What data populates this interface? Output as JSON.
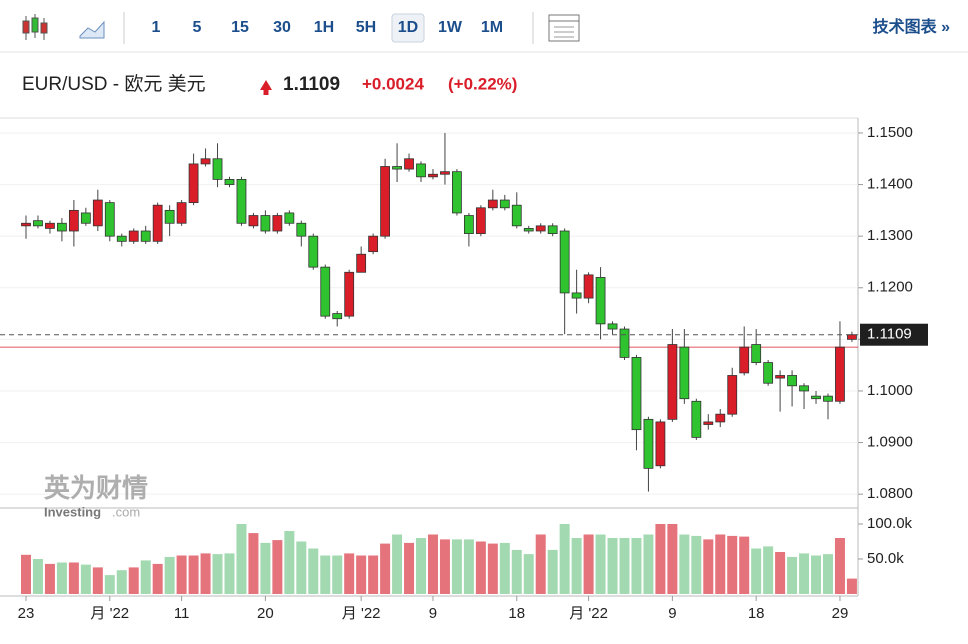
{
  "toolbar": {
    "buttons": [
      "1",
      "5",
      "15",
      "30",
      "1H",
      "5H",
      "1D",
      "1W",
      "1M"
    ],
    "selected": "1D",
    "link": "技术图表 »"
  },
  "quote": {
    "name": "EUR/USD - 欧元 美元",
    "last": 1.1109,
    "change": "+0.0024",
    "change_pct": "(+0.22%)"
  },
  "watermark": {
    "cn": "英为财情",
    "en": "Investing",
    "suffix": ".com"
  },
  "chart_data": {
    "type": "candlestick",
    "open": [
      1.132,
      1.133,
      1.1315,
      1.1325,
      1.131,
      1.1345,
      1.132,
      1.1365,
      1.13,
      1.129,
      1.131,
      1.129,
      1.135,
      1.1325,
      1.1365,
      1.144,
      1.145,
      1.141,
      1.141,
      1.132,
      1.134,
      1.131,
      1.1345,
      1.1325,
      1.13,
      1.124,
      1.115,
      1.1145,
      1.123,
      1.127,
      1.13,
      1.1435,
      1.143,
      1.144,
      1.1415,
      1.142,
      1.1425,
      1.134,
      1.1305,
      1.1355,
      1.137,
      1.136,
      1.1315,
      1.131,
      1.132,
      1.131,
      1.119,
      1.118,
      1.122,
      1.113,
      1.112,
      1.1065,
      1.0945,
      1.0855,
      1.0945,
      1.1085,
      1.098,
      1.0935,
      1.094,
      1.0955,
      1.1035,
      1.109,
      1.1055,
      1.1025,
      1.103,
      1.101,
      1.099,
      1.099,
      1.098,
      1.11
    ],
    "high": [
      1.134,
      1.134,
      1.133,
      1.1335,
      1.137,
      1.1355,
      1.139,
      1.137,
      1.1305,
      1.1315,
      1.132,
      1.1365,
      1.136,
      1.137,
      1.146,
      1.147,
      1.148,
      1.1415,
      1.1415,
      1.1345,
      1.135,
      1.1345,
      1.135,
      1.133,
      1.1305,
      1.1245,
      1.1155,
      1.1235,
      1.128,
      1.1305,
      1.145,
      1.148,
      1.146,
      1.1445,
      1.143,
      1.15,
      1.143,
      1.1345,
      1.136,
      1.139,
      1.138,
      1.1385,
      1.132,
      1.1325,
      1.1325,
      1.1315,
      1.1235,
      1.123,
      1.124,
      1.1135,
      1.1125,
      1.107,
      1.095,
      1.0945,
      1.112,
      1.112,
      1.0985,
      1.0955,
      1.0965,
      1.1045,
      1.1125,
      1.112,
      1.106,
      1.104,
      1.104,
      1.1015,
      1.1,
      1.0995,
      1.1135,
      1.1115
    ],
    "low": [
      1.1295,
      1.1315,
      1.1305,
      1.129,
      1.128,
      1.132,
      1.131,
      1.129,
      1.128,
      1.1285,
      1.1285,
      1.1285,
      1.13,
      1.132,
      1.136,
      1.1435,
      1.1395,
      1.1395,
      1.132,
      1.1315,
      1.1305,
      1.1305,
      1.132,
      1.128,
      1.1235,
      1.114,
      1.1125,
      1.114,
      1.1235,
      1.1265,
      1.1295,
      1.1405,
      1.1425,
      1.1405,
      1.141,
      1.14,
      1.134,
      1.128,
      1.13,
      1.135,
      1.135,
      1.1315,
      1.1305,
      1.1305,
      1.13,
      1.111,
      1.115,
      1.117,
      1.11,
      1.111,
      1.106,
      1.0885,
      1.0805,
      1.085,
      1.094,
      1.0975,
      1.0905,
      1.0925,
      1.093,
      1.095,
      1.103,
      1.105,
      1.101,
      1.096,
      1.097,
      1.0965,
      1.0975,
      1.0945,
      1.0975,
      1.1095
    ],
    "close": [
      1.1325,
      1.132,
      1.1325,
      1.131,
      1.135,
      1.1325,
      1.137,
      1.13,
      1.129,
      1.131,
      1.129,
      1.136,
      1.1325,
      1.1365,
      1.144,
      1.145,
      1.141,
      1.14,
      1.1325,
      1.134,
      1.131,
      1.134,
      1.1325,
      1.13,
      1.124,
      1.1145,
      1.114,
      1.123,
      1.1265,
      1.13,
      1.1435,
      1.143,
      1.145,
      1.1415,
      1.142,
      1.1425,
      1.1345,
      1.1305,
      1.1355,
      1.137,
      1.1355,
      1.132,
      1.131,
      1.132,
      1.1305,
      1.119,
      1.118,
      1.1225,
      1.113,
      1.112,
      1.1065,
      1.0925,
      1.085,
      1.094,
      1.109,
      1.0985,
      1.091,
      1.094,
      1.0955,
      1.103,
      1.1085,
      1.1055,
      1.1015,
      1.103,
      1.101,
      1.1,
      1.0985,
      1.098,
      1.1085,
      1.1109
    ],
    "volume": [
      56000,
      50000,
      43000,
      45000,
      45000,
      42000,
      38000,
      27000,
      34000,
      38000,
      48000,
      43000,
      53000,
      55000,
      55000,
      58000,
      57000,
      58000,
      100000,
      87000,
      73000,
      77000,
      90000,
      75000,
      65000,
      55000,
      55000,
      58000,
      55000,
      55000,
      72000,
      85000,
      73000,
      80000,
      85000,
      78000,
      78000,
      78000,
      75000,
      72000,
      73000,
      63000,
      57000,
      85000,
      63000,
      100000,
      80000,
      85000,
      85000,
      80000,
      80000,
      80000,
      85000,
      100000,
      100000,
      85000,
      83000,
      78000,
      85000,
      83000,
      82000,
      65000,
      68000,
      60000,
      53000,
      58000,
      55000,
      57000,
      80000,
      22000
    ],
    "up_color": "#d91e2a",
    "down_color": "#2fc42f",
    "up_volume_color": "#e4737b",
    "down_volume_color": "#a3d9b1",
    "prev_close": 1.1085,
    "ylim": [
      1.0779,
      1.1529
    ],
    "yticks": [
      {
        "value": 1.08,
        "label": "1.0800"
      },
      {
        "value": 1.09,
        "label": "1.0900"
      },
      {
        "value": 1.1,
        "label": "1.1000"
      },
      {
        "value": 1.11,
        "label": "1.1100"
      },
      {
        "value": 1.12,
        "label": "1.1200"
      },
      {
        "value": 1.13,
        "label": "1.1300"
      },
      {
        "value": 1.14,
        "label": "1.1400"
      },
      {
        "value": 1.15,
        "label": "1.1500"
      }
    ],
    "vol_ylim": [
      0,
      120000
    ],
    "vol_ticks": [
      {
        "value": 50000,
        "label": "50.0k"
      },
      {
        "value": 100000,
        "label": "100.0k"
      }
    ],
    "xticks": [
      {
        "value": 0,
        "label": "23"
      },
      {
        "value": 7,
        "label": "月 '22"
      },
      {
        "value": 13,
        "label": "11"
      },
      {
        "value": 20,
        "label": "20"
      },
      {
        "value": 28,
        "label": "月 '22"
      },
      {
        "value": 34,
        "label": "9"
      },
      {
        "value": 41,
        "label": "18"
      },
      {
        "value": 47,
        "label": "月 '22"
      },
      {
        "value": 54,
        "label": "9"
      },
      {
        "value": 61,
        "label": "18"
      },
      {
        "value": 68,
        "label": "29"
      }
    ],
    "grid": true
  }
}
